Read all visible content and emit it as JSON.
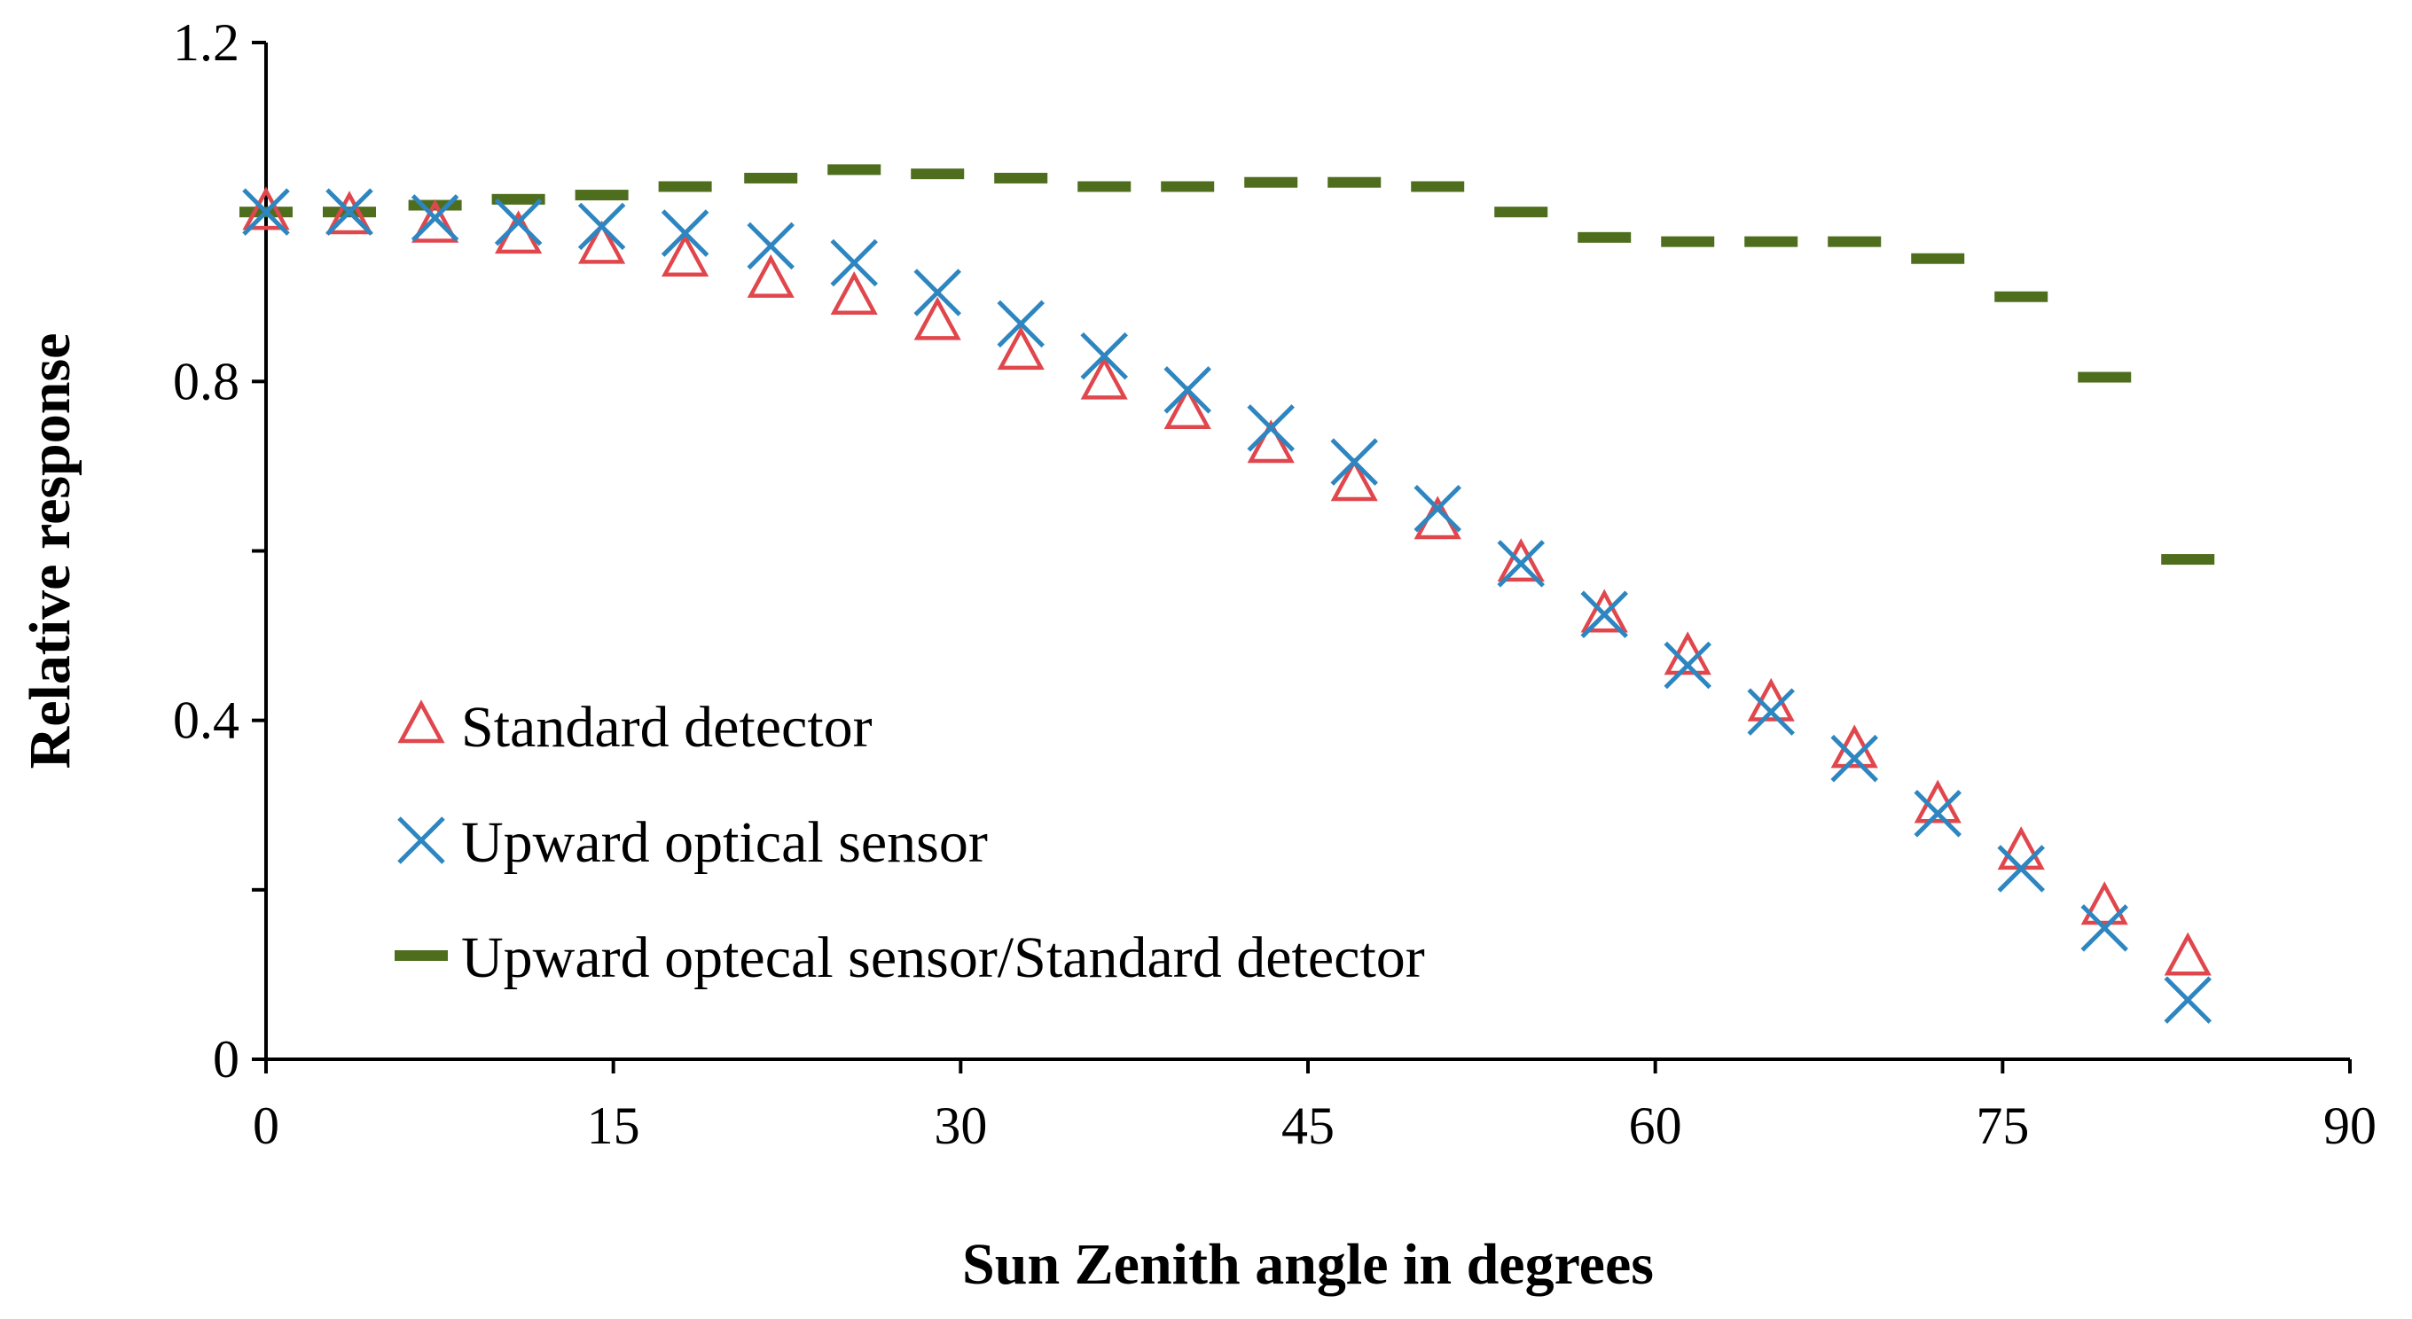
{
  "chart_data": {
    "type": "scatter",
    "title": "",
    "xlabel": "Sun Zenith angle in degrees",
    "ylabel": "Relative response",
    "xlim": [
      0,
      90
    ],
    "ylim": [
      0,
      1.2
    ],
    "xticks": [
      0,
      15,
      30,
      45,
      60,
      75,
      90
    ],
    "xtick_labels": [
      "0",
      "15",
      "30",
      "45",
      "60",
      "75",
      "90"
    ],
    "yticks": [
      0,
      0.4,
      0.8,
      1.2
    ],
    "ytick_labels": [
      "0",
      "0.4",
      "0.8",
      "1.2"
    ],
    "grid": false,
    "legend_position": "lower-left",
    "x": [
      0,
      3.6,
      7.3,
      10.9,
      14.5,
      18.1,
      21.8,
      25.4,
      29.0,
      32.6,
      36.2,
      39.8,
      43.4,
      47.0,
      50.6,
      54.2,
      57.8,
      61.4,
      65.0,
      68.6,
      72.2,
      75.8,
      79.4,
      83.0
    ],
    "series": [
      {
        "name": "Standard detector",
        "marker": "triangle-open",
        "color": "#E0474C",
        "values": [
          1.0,
          0.995,
          0.985,
          0.972,
          0.96,
          0.945,
          0.92,
          0.9,
          0.87,
          0.835,
          0.8,
          0.765,
          0.725,
          0.68,
          0.635,
          0.585,
          0.525,
          0.475,
          0.42,
          0.365,
          0.3,
          0.245,
          0.18,
          0.12
        ]
      },
      {
        "name": "Upward optical sensor",
        "marker": "x",
        "color": "#2E86C1",
        "values": [
          1.0,
          1.0,
          0.993,
          0.988,
          0.983,
          0.975,
          0.96,
          0.94,
          0.905,
          0.868,
          0.83,
          0.79,
          0.745,
          0.705,
          0.65,
          0.585,
          0.525,
          0.465,
          0.41,
          0.355,
          0.29,
          0.225,
          0.155,
          0.07
        ]
      },
      {
        "name": "Upward optecal sensor/Standard detector",
        "marker": "dash",
        "color": "#4E6E1E",
        "values": [
          1.0,
          1.0,
          1.008,
          1.015,
          1.02,
          1.03,
          1.04,
          1.05,
          1.045,
          1.04,
          1.03,
          1.03,
          1.035,
          1.035,
          1.03,
          1.0,
          0.97,
          0.965,
          0.965,
          0.965,
          0.945,
          0.9,
          0.805,
          0.59
        ]
      }
    ]
  }
}
